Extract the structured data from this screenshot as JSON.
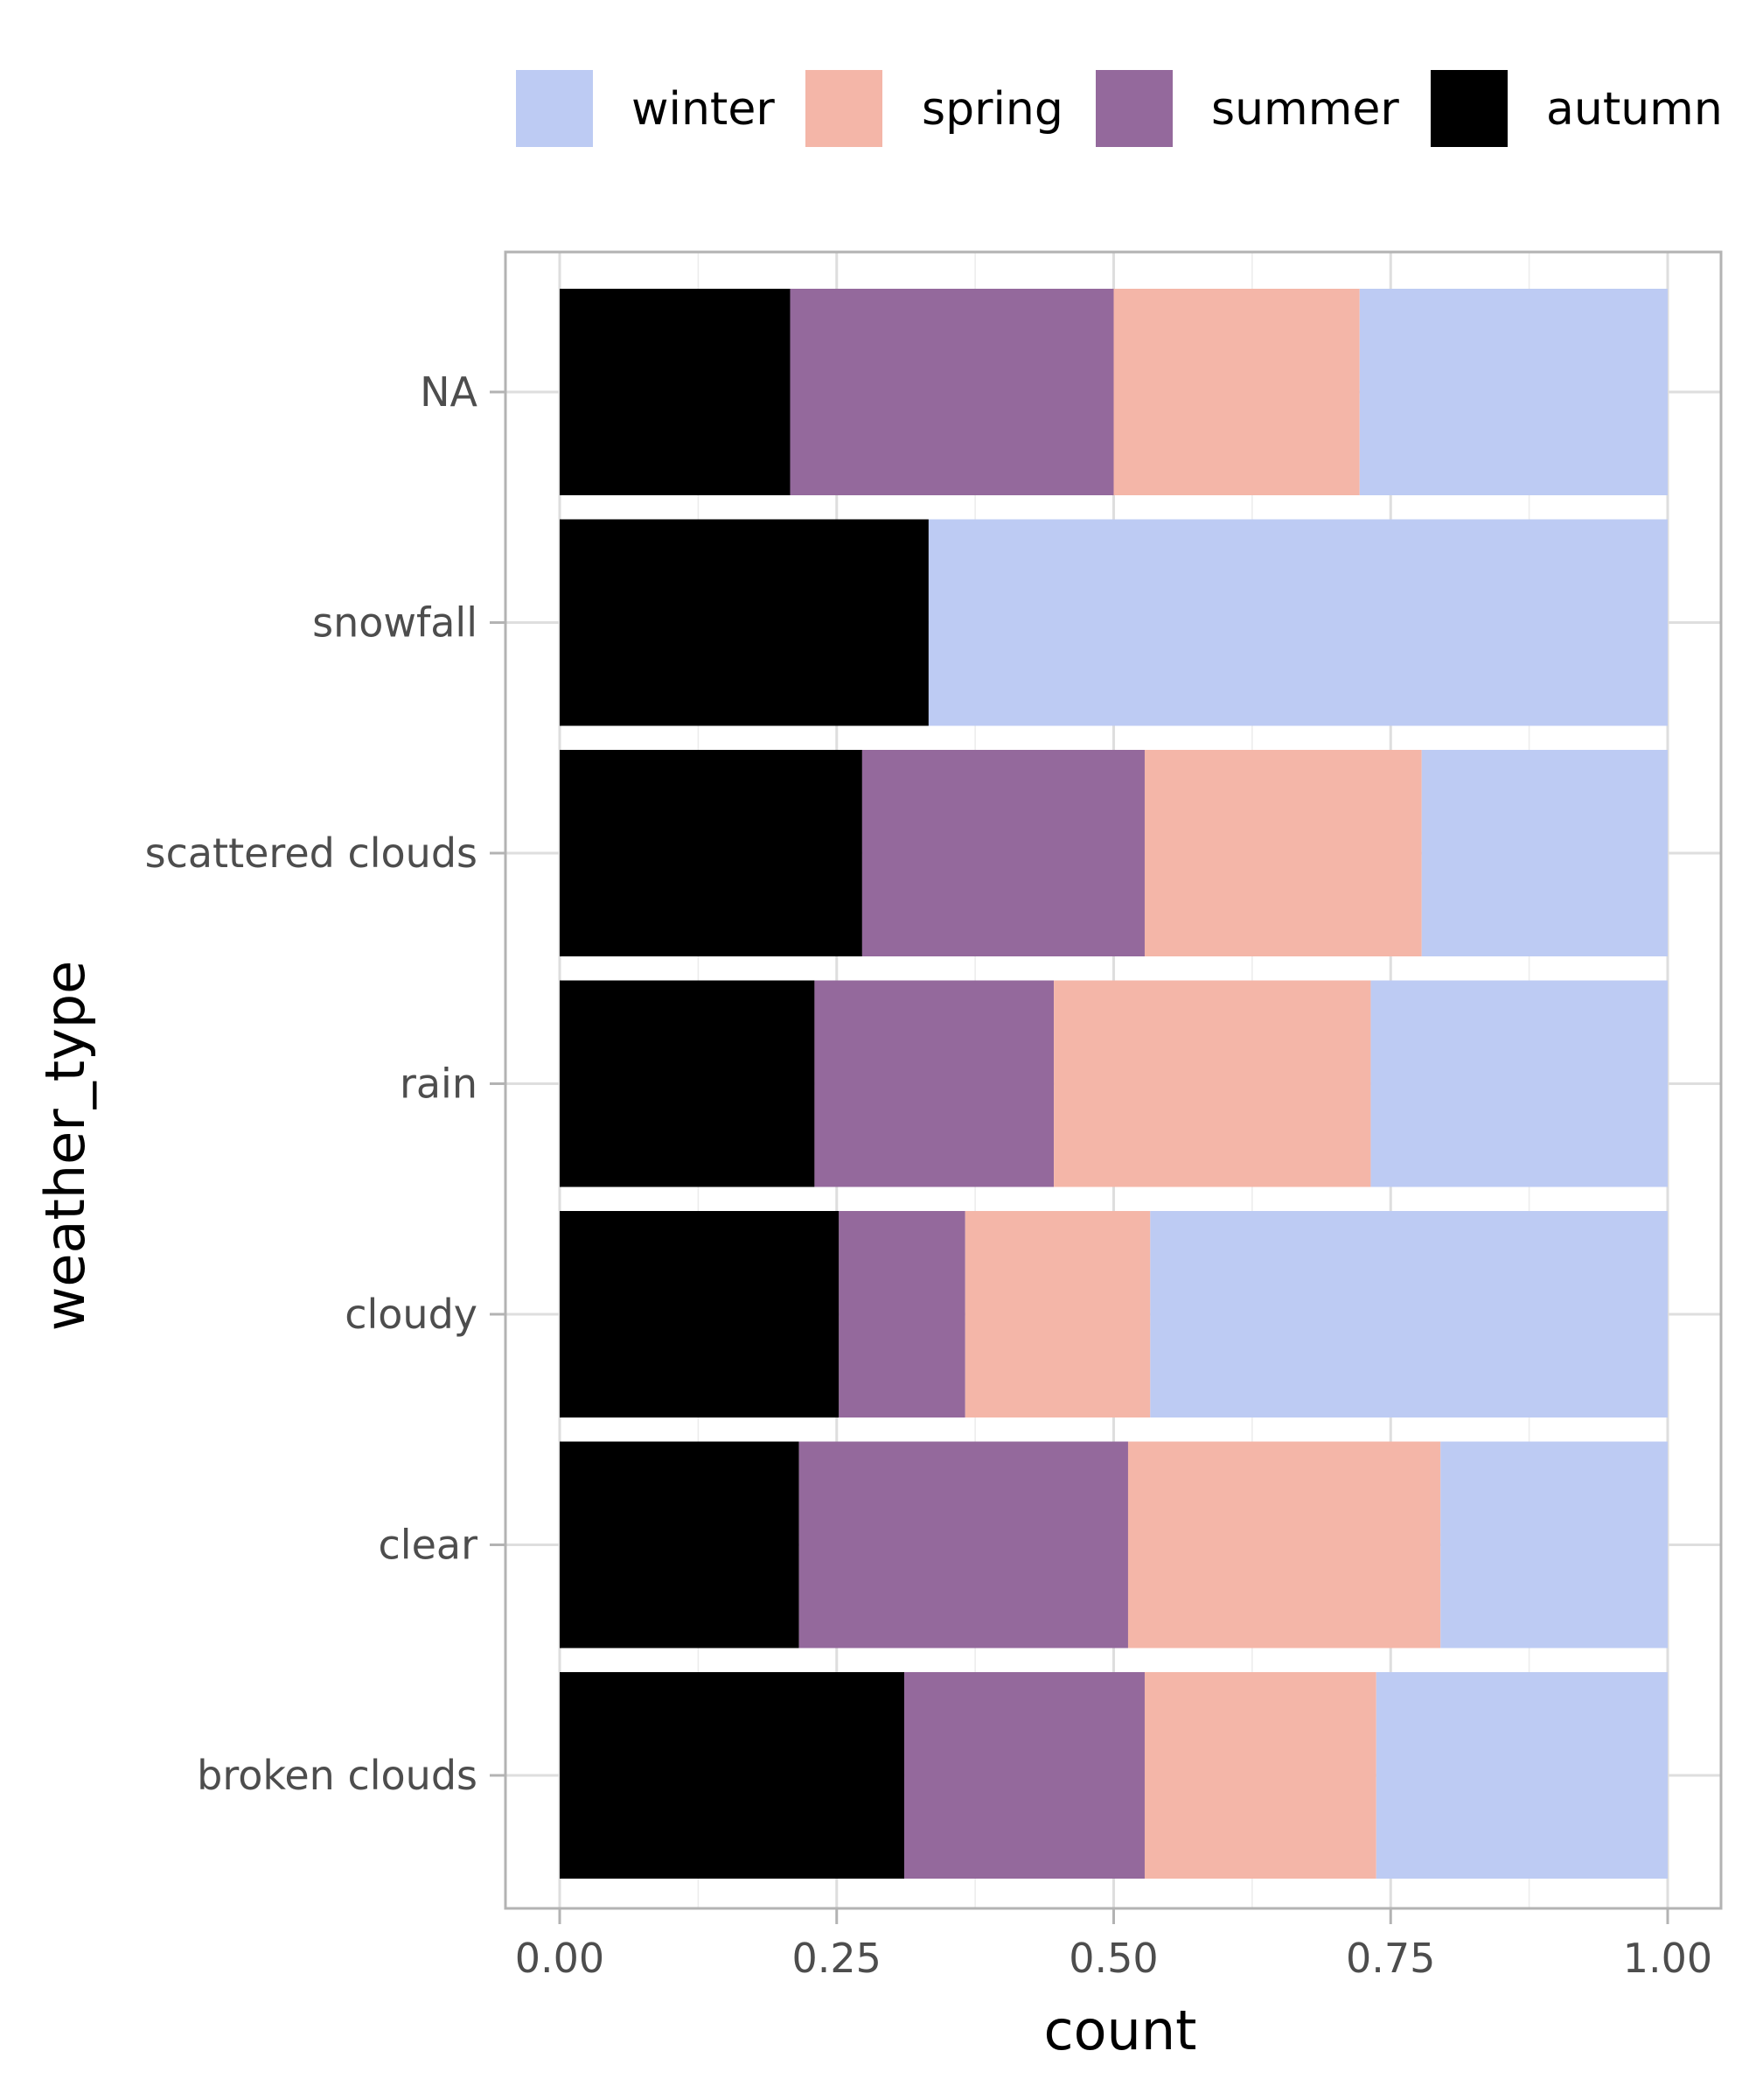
{
  "chart_data": {
    "type": "bar",
    "orientation": "horizontal",
    "stacked": "fill",
    "xlabel": "count",
    "ylabel": "weather_type",
    "xlim": [
      0,
      1
    ],
    "x_ticks": [
      "0.00",
      "0.25",
      "0.50",
      "0.75",
      "1.00"
    ],
    "x_tick_values": [
      0,
      0.25,
      0.5,
      0.75,
      1
    ],
    "grid": true,
    "legend_position": "top",
    "categories": [
      "NA",
      "snowfall",
      "scattered clouds",
      "rain",
      "cloudy",
      "clear",
      "broken clouds"
    ],
    "series": [
      {
        "name": "winter",
        "color": "#BDCBF3",
        "values": [
          0.278,
          0.667,
          0.222,
          0.268,
          0.467,
          0.205,
          0.263
        ]
      },
      {
        "name": "spring",
        "color": "#F4B6A8",
        "values": [
          0.222,
          0.0,
          0.25,
          0.286,
          0.167,
          0.282,
          0.209
        ]
      },
      {
        "name": "summer",
        "color": "#94699C",
        "values": [
          0.292,
          0.0,
          0.255,
          0.216,
          0.114,
          0.297,
          0.217
        ]
      },
      {
        "name": "autumn",
        "color": "#000000",
        "values": [
          0.208,
          0.333,
          0.273,
          0.23,
          0.252,
          0.216,
          0.311
        ]
      }
    ]
  }
}
